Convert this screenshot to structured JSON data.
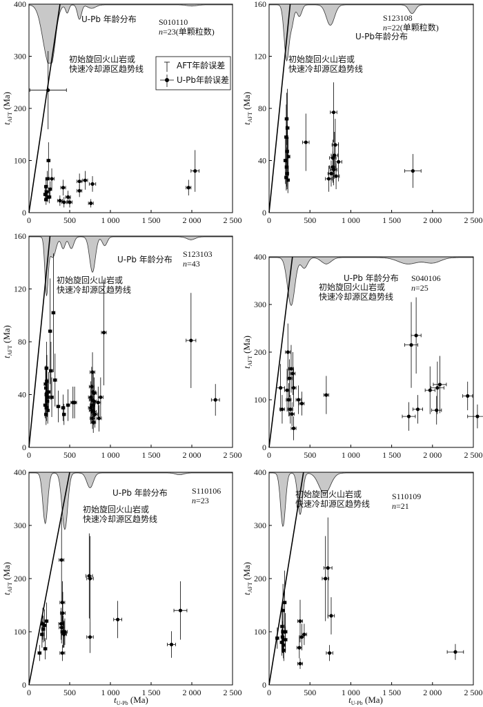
{
  "axis_texts": {
    "y_label_t": "t",
    "y_label_sub": "AFT",
    "y_label_unit": " (Ma)",
    "x_label_t": "t",
    "x_label_sub": "U-Pb",
    "x_label_unit": " (Ma)"
  },
  "annotations": {
    "kde_label": "U-Pb 年龄分布",
    "kde_label_b": "U-Pb年龄分布",
    "trend_line_1": "初始旋回火山岩或",
    "trend_line_2": "快速冷却源区趋势线"
  },
  "legend": {
    "aft_error": "AFT年龄误差",
    "upb_error": "U-Pb年龄误差"
  },
  "colors": {
    "kde_fill": "#c8c8c8",
    "point": "#000000",
    "line": "#000000"
  },
  "chart_data": [
    {
      "type": "scatter",
      "sample": "S010110",
      "n_text": "=23(单颗粒数)",
      "xlim": [
        0,
        2500
      ],
      "ylim": [
        0,
        400
      ],
      "xticks": [
        "0",
        "500",
        "1 000",
        "1 500",
        "2 000",
        "2 500"
      ],
      "yticks": [
        "0",
        "100",
        "200",
        "300",
        "400"
      ],
      "trend_slope": 1.05,
      "kde_peaks": [
        [
          235,
          70,
          0.9
        ],
        [
          290,
          40,
          0.3
        ],
        [
          470,
          20,
          0.14
        ],
        [
          620,
          25,
          0.25
        ],
        [
          770,
          50,
          0.06
        ],
        [
          2000,
          60,
          0.02
        ]
      ],
      "points": [
        [
          235,
          235,
          225,
          75
        ],
        [
          240,
          100,
          20,
          35
        ],
        [
          225,
          65,
          20,
          15
        ],
        [
          210,
          50,
          20,
          15
        ],
        [
          220,
          40,
          25,
          12
        ],
        [
          200,
          35,
          20,
          12
        ],
        [
          230,
          30,
          20,
          10
        ],
        [
          210,
          25,
          20,
          10
        ],
        [
          260,
          45,
          20,
          15
        ],
        [
          280,
          65,
          30,
          20
        ],
        [
          250,
          30,
          20,
          12
        ],
        [
          420,
          48,
          30,
          15
        ],
        [
          430,
          20,
          30,
          10
        ],
        [
          480,
          30,
          30,
          12
        ],
        [
          500,
          20,
          30,
          10
        ],
        [
          620,
          60,
          30,
          15
        ],
        [
          620,
          42,
          30,
          12
        ],
        [
          690,
          62,
          30,
          18
        ],
        [
          780,
          55,
          40,
          15
        ],
        [
          760,
          18,
          30,
          8
        ],
        [
          1960,
          48,
          30,
          15
        ],
        [
          2040,
          80,
          50,
          40
        ],
        [
          380,
          23,
          30,
          10
        ]
      ]
    },
    {
      "type": "scatter",
      "sample": "S123108",
      "n_text": "=22(单颗粒数)",
      "xlim": [
        0,
        2500
      ],
      "ylim": [
        0,
        160
      ],
      "xticks": [
        "0",
        "500",
        "1 000",
        "1 500",
        "2 000",
        "2 500"
      ],
      "yticks": [
        "0",
        "40",
        "80",
        "120",
        "160"
      ],
      "trend_slope": 0.62,
      "kde_peaks": [
        [
          215,
          30,
          0.95
        ],
        [
          370,
          30,
          0.2
        ],
        [
          750,
          50,
          0.35
        ],
        [
          1750,
          40,
          0.15
        ],
        [
          280,
          25,
          0.3
        ]
      ],
      "points": [
        [
          215,
          72,
          20,
          20
        ],
        [
          225,
          65,
          20,
          30
        ],
        [
          210,
          58,
          20,
          25
        ],
        [
          220,
          47,
          20,
          20
        ],
        [
          200,
          40,
          20,
          18
        ],
        [
          215,
          35,
          20,
          15
        ],
        [
          220,
          30,
          20,
          12
        ],
        [
          210,
          27,
          20,
          10
        ],
        [
          230,
          25,
          20,
          10
        ],
        [
          235,
          43,
          20,
          15
        ],
        [
          450,
          54,
          40,
          22
        ],
        [
          790,
          77,
          40,
          23
        ],
        [
          810,
          52,
          40,
          20
        ],
        [
          800,
          44,
          40,
          18
        ],
        [
          850,
          39,
          40,
          15
        ],
        [
          780,
          35,
          40,
          12
        ],
        [
          760,
          30,
          40,
          10
        ],
        [
          820,
          28,
          40,
          10
        ],
        [
          730,
          26,
          40,
          10
        ],
        [
          790,
          33,
          40,
          12
        ],
        [
          1760,
          32,
          100,
          13
        ],
        [
          780,
          42,
          40,
          14
        ]
      ]
    },
    {
      "type": "scatter",
      "sample": "S123103",
      "n_text": "=43",
      "xlim": [
        0,
        2500
      ],
      "ylim": [
        0,
        160
      ],
      "xticks": [
        "0",
        "500",
        "1 000",
        "1 500",
        "2 000",
        "2 500"
      ],
      "yticks": [
        "0",
        "40",
        "80",
        "120",
        "160"
      ],
      "trend_slope": 0.62,
      "kde_peaks": [
        [
          215,
          20,
          0.95
        ],
        [
          290,
          40,
          0.35
        ],
        [
          420,
          25,
          0.2
        ],
        [
          520,
          30,
          0.2
        ],
        [
          780,
          35,
          0.6
        ],
        [
          930,
          30,
          0.15
        ],
        [
          1990,
          50,
          0.05
        ]
      ],
      "points": [
        [
          215,
          60,
          20,
          20
        ],
        [
          220,
          50,
          20,
          20
        ],
        [
          210,
          45,
          20,
          15
        ],
        [
          215,
          40,
          20,
          12
        ],
        [
          225,
          35,
          20,
          12
        ],
        [
          200,
          32,
          20,
          10
        ],
        [
          230,
          28,
          20,
          10
        ],
        [
          210,
          25,
          20,
          8
        ],
        [
          260,
          88,
          20,
          40
        ],
        [
          270,
          58,
          20,
          22
        ],
        [
          300,
          102,
          20,
          45
        ],
        [
          320,
          51,
          20,
          20
        ],
        [
          280,
          38,
          20,
          15
        ],
        [
          360,
          31,
          20,
          12
        ],
        [
          420,
          30,
          20,
          10
        ],
        [
          430,
          25,
          20,
          8
        ],
        [
          480,
          32,
          20,
          12
        ],
        [
          540,
          34,
          25,
          12
        ],
        [
          560,
          34,
          25,
          12
        ],
        [
          780,
          57,
          30,
          15
        ],
        [
          770,
          46,
          30,
          15
        ],
        [
          790,
          42,
          30,
          15
        ],
        [
          760,
          38,
          30,
          12
        ],
        [
          800,
          35,
          30,
          12
        ],
        [
          780,
          32,
          30,
          10
        ],
        [
          770,
          28,
          30,
          10
        ],
        [
          810,
          25,
          30,
          10
        ],
        [
          780,
          22,
          30,
          8
        ],
        [
          790,
          19,
          30,
          8
        ],
        [
          850,
          34,
          30,
          12
        ],
        [
          880,
          38,
          30,
          15
        ],
        [
          860,
          22,
          30,
          10
        ],
        [
          920,
          87,
          30,
          40
        ],
        [
          1990,
          81,
          60,
          36
        ],
        [
          2290,
          36,
          50,
          12
        ],
        [
          760,
          30,
          30,
          10
        ],
        [
          230,
          38,
          20,
          14
        ],
        [
          205,
          48,
          20,
          14
        ],
        [
          770,
          36,
          30,
          12
        ],
        [
          795,
          27,
          30,
          10
        ],
        [
          215,
          30,
          20,
          10
        ],
        [
          800,
          41,
          30,
          12
        ],
        [
          240,
          42,
          20,
          15
        ]
      ]
    },
    {
      "type": "scatter",
      "sample": "S040106",
      "n_text": "=25",
      "xlim": [
        0,
        2500
      ],
      "ylim": [
        0,
        400
      ],
      "xticks": [
        "0",
        "500",
        "1 000",
        "1 500",
        "2 000",
        "2 500"
      ],
      "yticks": [
        "0",
        "100",
        "200",
        "300",
        "400"
      ],
      "trend_slope": 1.4,
      "kde_peaks": [
        [
          270,
          45,
          0.9
        ],
        [
          430,
          40,
          0.2
        ],
        [
          700,
          60,
          0.12
        ],
        [
          1700,
          120,
          0.12
        ],
        [
          2000,
          100,
          0.1
        ]
      ],
      "points": [
        [
          230,
          200,
          30,
          60
        ],
        [
          270,
          165,
          30,
          50
        ],
        [
          290,
          155,
          30,
          45
        ],
        [
          250,
          145,
          30,
          40
        ],
        [
          300,
          125,
          30,
          40
        ],
        [
          220,
          120,
          30,
          45
        ],
        [
          240,
          100,
          30,
          35
        ],
        [
          260,
          80,
          30,
          30
        ],
        [
          280,
          70,
          30,
          25
        ],
        [
          300,
          40,
          30,
          25
        ],
        [
          140,
          125,
          50,
          50
        ],
        [
          160,
          80,
          30,
          30
        ],
        [
          360,
          100,
          30,
          30
        ],
        [
          400,
          92,
          30,
          25
        ],
        [
          700,
          110,
          30,
          40
        ],
        [
          1800,
          235,
          60,
          80
        ],
        [
          1740,
          215,
          80,
          90
        ],
        [
          1710,
          65,
          80,
          30
        ],
        [
          1820,
          80,
          60,
          30
        ],
        [
          1970,
          120,
          60,
          50
        ],
        [
          2060,
          125,
          80,
          55
        ],
        [
          2090,
          132,
          80,
          60
        ],
        [
          2050,
          78,
          60,
          30
        ],
        [
          2430,
          108,
          60,
          30
        ],
        [
          2550,
          65,
          120,
          25
        ]
      ]
    },
    {
      "type": "scatter",
      "sample": "S110106",
      "n_text": "=23",
      "xlim": [
        0,
        2500
      ],
      "ylim": [
        0,
        400
      ],
      "xticks": [
        "0",
        "500",
        "1 000",
        "1 500",
        "2 000",
        "2 500"
      ],
      "yticks": [
        "0",
        "100",
        "200",
        "300",
        "400"
      ],
      "trend_slope": 0.8,
      "kde_peaks": [
        [
          200,
          30,
          0.85
        ],
        [
          440,
          35,
          0.95
        ],
        [
          750,
          40,
          0.25
        ],
        [
          1850,
          50,
          0.03
        ]
      ],
      "points": [
        [
          130,
          60,
          20,
          15
        ],
        [
          160,
          95,
          20,
          25
        ],
        [
          170,
          115,
          20,
          30
        ],
        [
          175,
          105,
          20,
          25
        ],
        [
          190,
          112,
          20,
          30
        ],
        [
          200,
          68,
          20,
          20
        ],
        [
          215,
          120,
          20,
          35
        ],
        [
          400,
          235,
          30,
          80
        ],
        [
          410,
          155,
          30,
          40
        ],
        [
          415,
          135,
          30,
          40
        ],
        [
          395,
          115,
          30,
          30
        ],
        [
          400,
          108,
          30,
          30
        ],
        [
          420,
          100,
          30,
          30
        ],
        [
          430,
          96,
          30,
          25
        ],
        [
          410,
          60,
          30,
          15
        ],
        [
          440,
          100,
          30,
          25
        ],
        [
          740,
          205,
          40,
          80
        ],
        [
          750,
          200,
          40,
          80
        ],
        [
          750,
          90,
          40,
          30
        ],
        [
          1090,
          123,
          50,
          35
        ],
        [
          1750,
          76,
          50,
          25
        ],
        [
          1860,
          140,
          80,
          55
        ],
        [
          430,
          95,
          30,
          25
        ]
      ]
    },
    {
      "type": "scatter",
      "sample": "S110109",
      "n_text": "=21",
      "xlim": [
        0,
        2500
      ],
      "ylim": [
        0,
        400
      ],
      "xticks": [
        "0",
        "500",
        "1 000",
        "1 500",
        "2 000",
        "2 500"
      ],
      "yticks": [
        "0",
        "100",
        "200",
        "300",
        "400"
      ],
      "trend_slope": 0.95,
      "kde_peaks": [
        [
          170,
          30,
          0.9
        ],
        [
          380,
          30,
          0.7
        ],
        [
          680,
          70,
          0.35
        ]
      ],
      "points": [
        [
          100,
          88,
          20,
          20
        ],
        [
          160,
          110,
          20,
          45
        ],
        [
          170,
          100,
          20,
          40
        ],
        [
          165,
          90,
          20,
          30
        ],
        [
          155,
          80,
          20,
          25
        ],
        [
          175,
          75,
          20,
          25
        ],
        [
          180,
          65,
          20,
          20
        ],
        [
          190,
          155,
          20,
          60
        ],
        [
          200,
          100,
          20,
          35
        ],
        [
          200,
          85,
          20,
          25
        ],
        [
          170,
          140,
          20,
          50
        ],
        [
          380,
          120,
          30,
          40
        ],
        [
          370,
          70,
          30,
          20
        ],
        [
          380,
          40,
          30,
          10
        ],
        [
          400,
          90,
          30,
          25
        ],
        [
          430,
          95,
          30,
          20
        ],
        [
          690,
          200,
          40,
          80
        ],
        [
          720,
          220,
          50,
          95
        ],
        [
          760,
          130,
          40,
          35
        ],
        [
          740,
          60,
          40,
          15
        ],
        [
          2280,
          62,
          100,
          15
        ]
      ]
    }
  ]
}
